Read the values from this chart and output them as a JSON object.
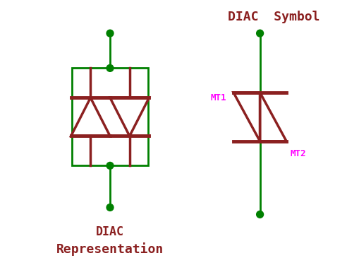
{
  "bg_color": "#ffffff",
  "wire_color": "#008000",
  "diode_color": "#8b2020",
  "label_color_red": "#8b2020",
  "label_color_magenta": "#ff00ff",
  "title": "DIAC  Symbol",
  "bottom_label1": "DIAC",
  "bottom_label2": "Representation",
  "fig_width": 4.92,
  "fig_height": 3.82
}
